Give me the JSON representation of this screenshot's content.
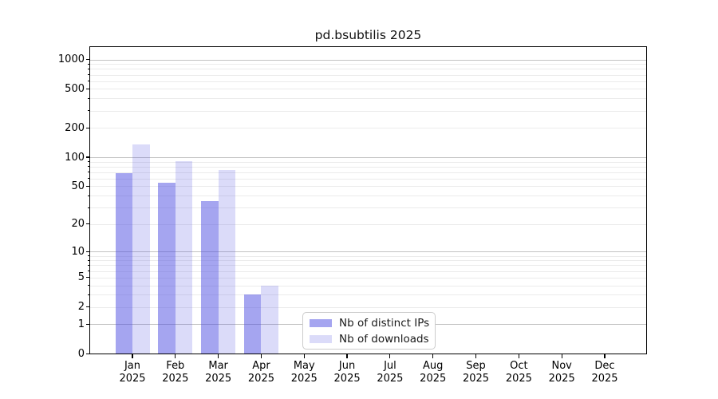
{
  "chart_data": {
    "type": "bar",
    "title": "pd.bsubtilis 2025",
    "x_year": "2025",
    "categories": [
      "Jan",
      "Feb",
      "Mar",
      "Apr",
      "May",
      "Jun",
      "Jul",
      "Aug",
      "Sep",
      "Oct",
      "Nov",
      "Dec"
    ],
    "series": [
      {
        "name": "Nb of distinct IPs",
        "color": "#4b4be1",
        "alpha": 0.5,
        "values": [
          68,
          55,
          35,
          3,
          0,
          0,
          0,
          0,
          0,
          0,
          0,
          0
        ]
      },
      {
        "name": "Nb of downloads",
        "color": "#4b4be1",
        "alpha": 0.2,
        "values": [
          135,
          91,
          74,
          4,
          0,
          0,
          0,
          0,
          0,
          0,
          0,
          0
        ]
      }
    ],
    "yscale": "log1p",
    "yticks": [
      0,
      1,
      2,
      5,
      10,
      20,
      50,
      100,
      200,
      500,
      1000
    ],
    "ylim": [
      0,
      1337
    ],
    "xlabel": "",
    "ylabel": "",
    "grid": true,
    "legend_position": "lower center",
    "colors": {
      "axis": "#000000",
      "grid_major": "#c3c3c3",
      "grid_minor": "#ebebeb",
      "legend_border": "#cccccc",
      "background": "#ffffff"
    }
  }
}
